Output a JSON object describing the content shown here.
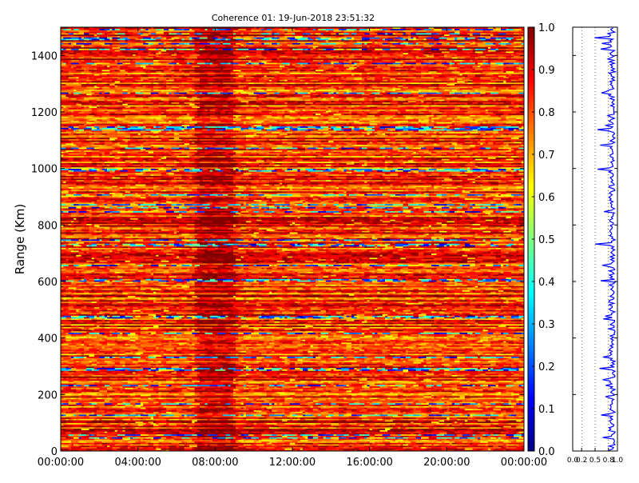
{
  "chart_data": [
    {
      "type": "heatmap",
      "title": "Coherence 01: 19-Jun-2018 23:51:32",
      "xlabel": "",
      "ylabel": "Range (Km)",
      "x_tick_labels": [
        "00:00:00",
        "04:00:00",
        "08:00:00",
        "12:00:00",
        "16:00:00",
        "20:00:00",
        "00:00:00"
      ],
      "x_range_hours": [
        0,
        24
      ],
      "y_ticks": [
        0,
        200,
        400,
        600,
        800,
        1000,
        1200,
        1400
      ],
      "ylim": [
        0,
        1500
      ],
      "value_range": [
        0.0,
        1.0
      ],
      "colormap": "jet",
      "gap_hours": [
        6.9,
        8.9
      ],
      "low_coherence_ranges_km": [
        45,
        55,
        125,
        165,
        230,
        285,
        290,
        330,
        415,
        470,
        475,
        600,
        605,
        655,
        725,
        730,
        745,
        845,
        860,
        870,
        905,
        990,
        995,
        1070,
        1135,
        1140,
        1145,
        1265,
        1370,
        1420,
        1440,
        1455,
        1460,
        1475,
        1490
      ],
      "grid": false
    },
    {
      "type": "heatmap-colorbar",
      "ticks": [
        "0.0",
        "0.1",
        "0.2",
        "0.3",
        "0.4",
        "0.5",
        "0.6",
        "0.7",
        "0.8",
        "0.9",
        "1.0"
      ],
      "range": [
        0.0,
        1.0
      ],
      "colormap": "jet"
    },
    {
      "type": "line",
      "xlabel": "",
      "ylabel": "",
      "x_tick_labels": [
        "0.0",
        "0.2",
        "0.5",
        "0.8",
        "1.0"
      ],
      "x_ticks": [
        0.0,
        0.2,
        0.5,
        0.8,
        1.0
      ],
      "xlim": [
        0,
        1
      ],
      "ylim": [
        0,
        1500
      ],
      "color": "#0000ff",
      "typical_value": 0.88,
      "dips_km": [
        45,
        125,
        230,
        290,
        330,
        475,
        600,
        655,
        730,
        845,
        995,
        1135,
        1265,
        1420,
        1460
      ]
    }
  ]
}
